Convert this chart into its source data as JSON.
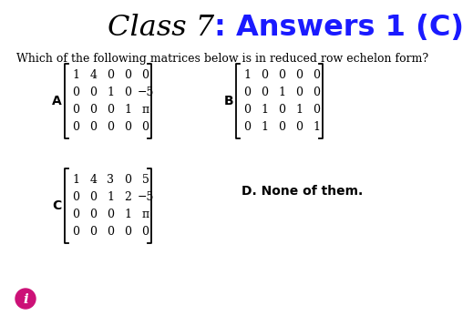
{
  "title_part1": "Class 7",
  "title_part2": ": Answers 1 (C)",
  "subtitle": "Which of the following matrices below is in reduced row echelon form?",
  "matrix_A": [
    [
      "1",
      "4",
      "0",
      "0",
      "0"
    ],
    [
      "0",
      "0",
      "1",
      "0",
      "−5"
    ],
    [
      "0",
      "0",
      "0",
      "1",
      "π"
    ],
    [
      "0",
      "0",
      "0",
      "0",
      "0"
    ]
  ],
  "matrix_B": [
    [
      "1",
      "0",
      "0",
      "0",
      "0"
    ],
    [
      "0",
      "0",
      "1",
      "0",
      "0"
    ],
    [
      "0",
      "1",
      "0",
      "1",
      "0"
    ],
    [
      "0",
      "1",
      "0",
      "0",
      "1"
    ]
  ],
  "matrix_C": [
    [
      "1",
      "4",
      "3",
      "0",
      "5"
    ],
    [
      "0",
      "0",
      "1",
      "2",
      "−5"
    ],
    [
      "0",
      "0",
      "0",
      "1",
      "π"
    ],
    [
      "0",
      "0",
      "0",
      "0",
      "0"
    ]
  ],
  "label_D": "D. None of them.",
  "bg_color": "#ffffff",
  "title_color1": "#000000",
  "title_color2": "#1a1aff",
  "label_color": "#000000",
  "matrix_color": "#000000"
}
